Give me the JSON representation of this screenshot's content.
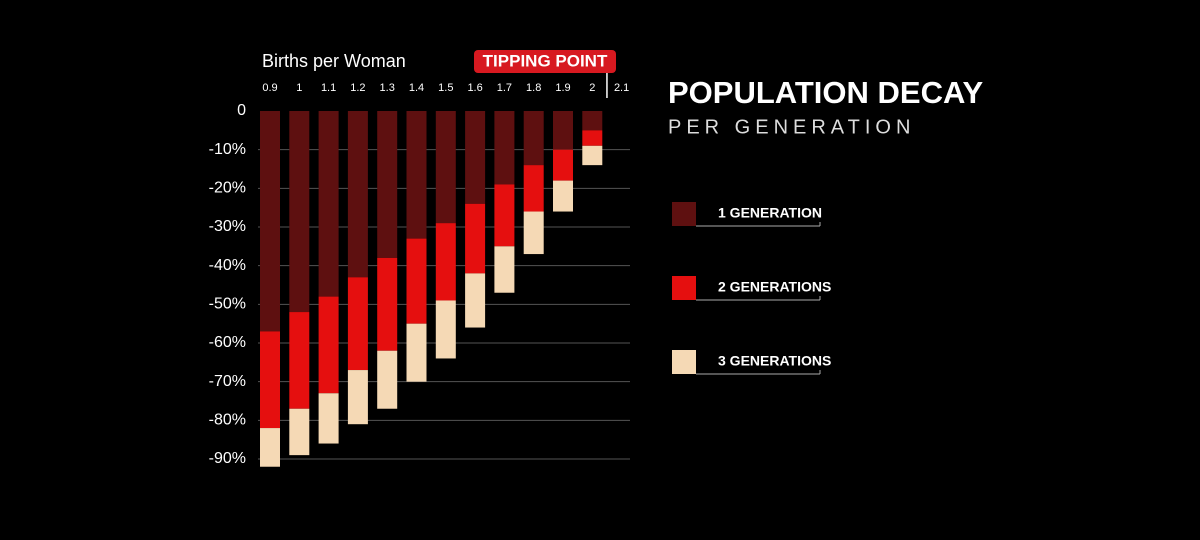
{
  "chart_data": {
    "type": "stacked_bar",
    "title": "POPULATION DECAY",
    "subtitle": "PER GENERATION",
    "x_label": "Births per Woman",
    "annotation": "TIPPING POINT",
    "categories": [
      "0.9",
      "1",
      "1.1",
      "1.2",
      "1.3",
      "1.4",
      "1.5",
      "1.6",
      "1.7",
      "1.8",
      "1.9",
      "2",
      "2.1"
    ],
    "series": [
      {
        "name": "1 GENERATION",
        "color": "#5e1010",
        "values": [
          -57,
          -52,
          -48,
          -43,
          -38,
          -33,
          -29,
          -24,
          -19,
          -14,
          -10,
          -5,
          null
        ]
      },
      {
        "name": "2 GENERATIONS",
        "color": "#e50f0f",
        "values": [
          -25,
          -25,
          -25,
          -24,
          -24,
          -22,
          -20,
          -18,
          -16,
          -12,
          -8,
          -4,
          null
        ]
      },
      {
        "name": "3 GENERATIONS",
        "color": "#f5d9b5",
        "values": [
          -10,
          -12,
          -13,
          -14,
          -15,
          -15,
          -15,
          -14,
          -12,
          -11,
          -8,
          -5,
          null
        ]
      }
    ],
    "ylim": [
      0,
      -90
    ],
    "yticks": [
      0,
      {
        "value": -10,
        "label": "-10%"
      },
      {
        "value": -20,
        "label": "-20%"
      },
      {
        "value": -30,
        "label": "-30%"
      },
      {
        "value": -40,
        "label": "-40%"
      },
      {
        "value": -50,
        "label": "-50%"
      },
      {
        "value": -60,
        "label": "-60%"
      },
      {
        "value": -70,
        "label": "-70%"
      },
      {
        "value": -80,
        "label": "-80%"
      },
      {
        "value": -90,
        "label": "-90%"
      }
    ],
    "grid": true
  }
}
